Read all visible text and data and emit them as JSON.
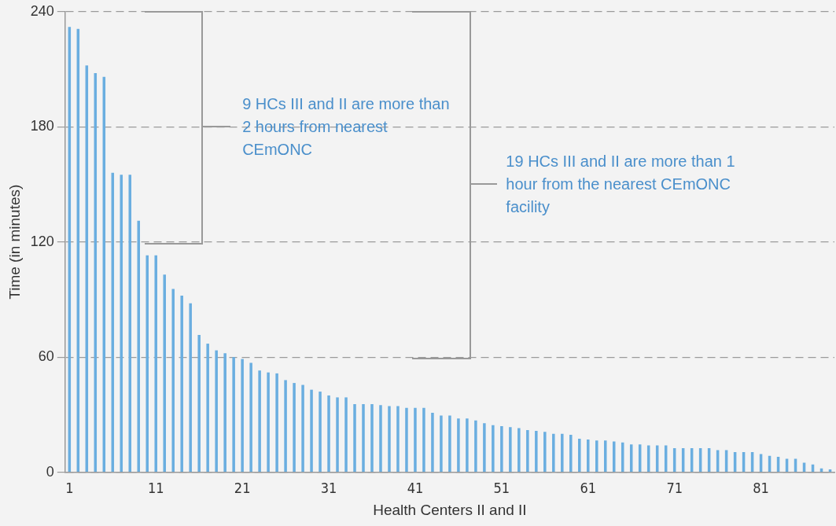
{
  "chart_data": {
    "type": "bar",
    "xlabel": "Health Centers II and II",
    "ylabel": "Time (in minutes)",
    "categories": [
      "1",
      null,
      null,
      null,
      null,
      null,
      null,
      null,
      null,
      null,
      "11",
      null,
      null,
      null,
      null,
      null,
      null,
      null,
      null,
      null,
      "21",
      null,
      null,
      null,
      null,
      null,
      null,
      null,
      null,
      null,
      "31",
      null,
      null,
      null,
      null,
      null,
      null,
      null,
      null,
      null,
      "41",
      null,
      null,
      null,
      null,
      null,
      null,
      null,
      null,
      null,
      "51",
      null,
      null,
      null,
      null,
      null,
      null,
      null,
      null,
      null,
      "61",
      null,
      null,
      null,
      null,
      null,
      null,
      null,
      null,
      null,
      "71",
      null,
      null,
      null,
      null,
      null,
      null,
      null,
      null,
      null,
      "81",
      null,
      null,
      null,
      null,
      null,
      null,
      null,
      null
    ],
    "values": [
      232,
      231,
      212,
      208,
      206,
      156,
      155,
      155,
      131,
      113,
      113,
      103,
      95.5,
      92,
      88,
      71.5,
      67,
      63.5,
      62,
      60,
      59,
      57,
      53,
      52,
      51.5,
      48,
      46.5,
      45.5,
      43,
      42,
      40,
      39,
      39,
      35.5,
      35.5,
      35.5,
      35,
      34.5,
      34.5,
      33.5,
      33.5,
      33.5,
      31,
      29.5,
      29.5,
      28,
      28,
      27,
      25.5,
      24.5,
      24,
      23.5,
      23,
      22,
      21.5,
      21,
      20,
      20,
      19.5,
      17.5,
      17,
      16.5,
      16.5,
      16,
      15.5,
      14.5,
      14.5,
      14,
      14,
      14,
      12.5,
      12.5,
      12.5,
      12.5,
      12.5,
      11.5,
      11.5,
      10.5,
      10.5,
      10.5,
      9.5,
      8.5,
      8,
      7,
      7,
      5,
      4,
      2,
      1.5
    ],
    "color": "#6aaee0",
    "ylim": [
      0,
      240
    ],
    "yticks": [
      0,
      60,
      120,
      180,
      240
    ],
    "grid": "y",
    "legend": false,
    "annotations": [
      "9 HCs III and II are more than 2 hours from nearest CEmONC",
      "19 HCs III and II are more than 1 hour from the nearest CEmONC facility"
    ]
  }
}
